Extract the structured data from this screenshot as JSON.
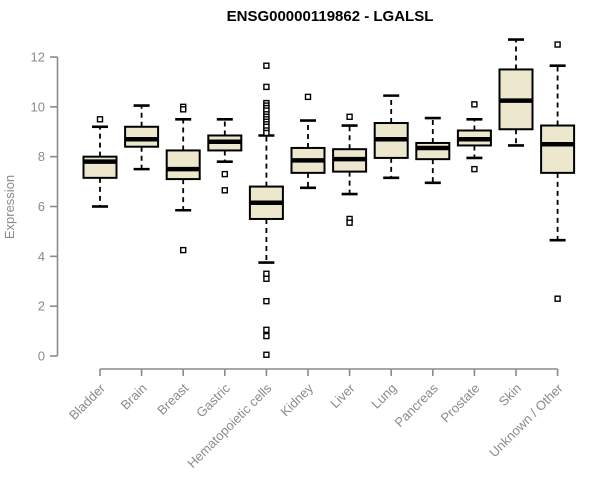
{
  "chart_data": {
    "type": "boxplot",
    "title": "ENSG00000119862 - LGALSL",
    "ylabel": "Expression",
    "xlabel": "",
    "ylim": [
      0,
      12
    ],
    "yticks": [
      0,
      2,
      4,
      6,
      8,
      10,
      12
    ],
    "grid": false,
    "legend": "none",
    "categories": [
      "Bladder",
      "Brain",
      "Breast",
      "Gastric",
      "Hematopoietic cells",
      "Kidney",
      "Liver",
      "Lung",
      "Pancreas",
      "Prostate",
      "Skin",
      "Unknown / Other"
    ],
    "series": [
      {
        "category": "Bladder",
        "whisker_low": 6.0,
        "q1": 7.15,
        "median": 7.8,
        "q3": 8.0,
        "whisker_high": 9.2,
        "outliers": [
          9.5
        ]
      },
      {
        "category": "Brain",
        "whisker_low": 7.5,
        "q1": 8.4,
        "median": 8.7,
        "q3": 9.2,
        "whisker_high": 10.05,
        "outliers": []
      },
      {
        "category": "Breast",
        "whisker_low": 5.85,
        "q1": 7.1,
        "median": 7.5,
        "q3": 8.25,
        "whisker_high": 9.5,
        "outliers": [
          10.0,
          9.9,
          4.25
        ]
      },
      {
        "category": "Gastric",
        "whisker_low": 7.8,
        "q1": 8.25,
        "median": 8.6,
        "q3": 8.85,
        "whisker_high": 9.5,
        "outliers": [
          7.3,
          6.65
        ]
      },
      {
        "category": "Hematopoietic cells",
        "whisker_low": 3.75,
        "q1": 5.5,
        "median": 6.15,
        "q3": 6.8,
        "whisker_high": 8.85,
        "outliers": [
          11.65,
          10.8,
          10.15,
          10.05,
          9.95,
          9.85,
          9.7,
          9.6,
          9.5,
          9.4,
          9.3,
          9.2,
          9.05,
          8.95,
          3.3,
          3.1,
          2.2,
          1.05,
          0.8,
          0.05
        ]
      },
      {
        "category": "Kidney",
        "whisker_low": 6.75,
        "q1": 7.35,
        "median": 7.85,
        "q3": 8.35,
        "whisker_high": 9.45,
        "outliers": [
          10.4
        ]
      },
      {
        "category": "Liver",
        "whisker_low": 6.5,
        "q1": 7.4,
        "median": 7.9,
        "q3": 8.3,
        "whisker_high": 9.25,
        "outliers": [
          9.6,
          5.5,
          5.35
        ]
      },
      {
        "category": "Lung",
        "whisker_low": 7.15,
        "q1": 7.95,
        "median": 8.7,
        "q3": 9.35,
        "whisker_high": 10.45,
        "outliers": []
      },
      {
        "category": "Pancreas",
        "whisker_low": 6.95,
        "q1": 7.9,
        "median": 8.35,
        "q3": 8.55,
        "whisker_high": 9.55,
        "outliers": []
      },
      {
        "category": "Prostate",
        "whisker_low": 7.95,
        "q1": 8.45,
        "median": 8.7,
        "q3": 9.05,
        "whisker_high": 9.5,
        "outliers": [
          10.1,
          7.5
        ]
      },
      {
        "category": "Skin",
        "whisker_low": 8.45,
        "q1": 9.1,
        "median": 10.25,
        "q3": 11.5,
        "whisker_high": 12.7,
        "outliers": []
      },
      {
        "category": "Unknown / Other",
        "whisker_low": 4.65,
        "q1": 7.35,
        "median": 8.5,
        "q3": 9.25,
        "whisker_high": 11.65,
        "outliers": [
          12.5,
          2.3
        ]
      }
    ],
    "colors": {
      "box_fill": "#ede8cd",
      "box_stroke": "#000000",
      "median": "#000000",
      "whisker": "#000000",
      "outlier_stroke": "#000000",
      "outlier_fill": "#ffffff",
      "axis": "#8b8b8b",
      "background": "#ffffff",
      "title": "#000000"
    }
  }
}
